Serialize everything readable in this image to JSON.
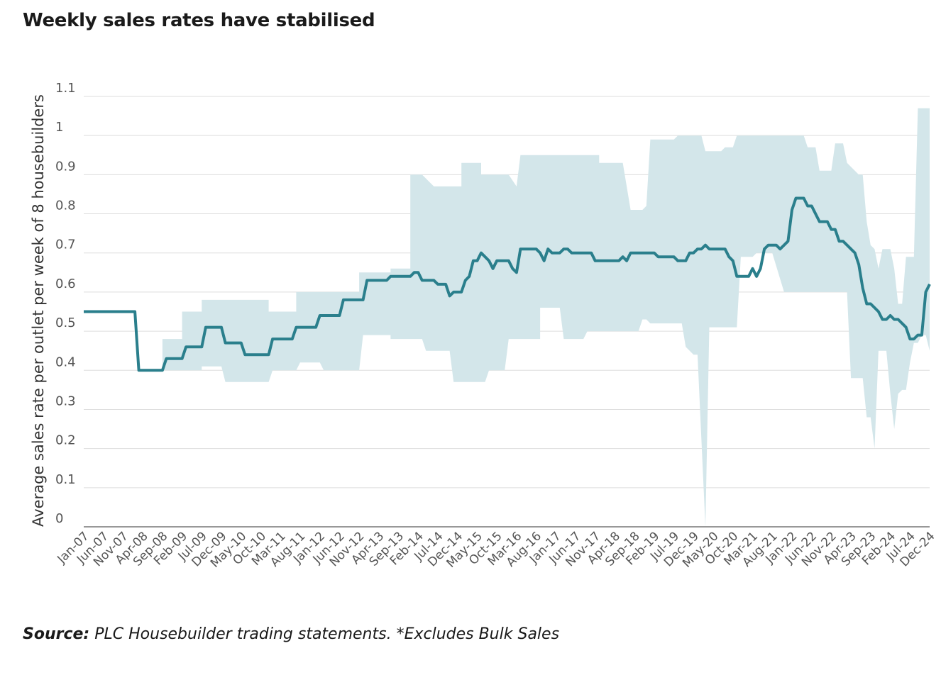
{
  "title": "Weekly sales rates have stabilised",
  "source_label": "Source:",
  "source_text": " PLC Housebuilder trading statements. *Excludes Bulk Sales",
  "colors": {
    "line": "#2a7f8c",
    "band": "#d3e6ea",
    "grid": "#dddddd",
    "axis": "#777777"
  },
  "chart_data": {
    "type": "line",
    "title": "Weekly sales rates have stabilised",
    "ylabel": "Average sales rate per outlet per week of 8 housebuilders",
    "xlabel": "",
    "ylim": [
      0,
      1.1
    ],
    "yticks": [
      0,
      0.1,
      0.2,
      0.3,
      0.4,
      0.5,
      0.6,
      0.7,
      0.8,
      0.9,
      1,
      1.1
    ],
    "xlim": [
      "Jan-07",
      "Dec-24"
    ],
    "x_ticks": [
      "Jan-07",
      "Jun-07",
      "Nov-07",
      "Apr-08",
      "Sep-08",
      "Feb-09",
      "Jul-09",
      "Dec-09",
      "May-10",
      "Oct-10",
      "Mar-11",
      "Aug-11",
      "Jan-12",
      "Jun-12",
      "Nov-12",
      "Apr-13",
      "Sep-13",
      "Feb-14",
      "Jul-14",
      "Dec-14",
      "May-15",
      "Oct-15",
      "Mar-16",
      "Aug-16",
      "Jan-17",
      "Jun-17",
      "Nov-17",
      "Apr-18",
      "Sep-18",
      "Feb-19",
      "Jul-19",
      "Dec-19",
      "May-20",
      "Oct-20",
      "Mar-21",
      "Aug-21",
      "Jan-22",
      "Jun-22",
      "Nov-22",
      "Apr-23",
      "Sep-23",
      "Feb-24",
      "Jul-24",
      "Dec-24"
    ],
    "grid": true,
    "series": [
      {
        "type": "line",
        "points": [
          [
            "Jan-07",
            0.55
          ],
          [
            "Jun-07",
            0.55
          ],
          [
            "Nov-07",
            0.55
          ],
          [
            "Feb-08",
            0.55
          ],
          [
            "Mar-08",
            0.4
          ],
          [
            "Apr-08",
            0.4
          ],
          [
            "Sep-08",
            0.4
          ],
          [
            "Oct-08",
            0.43
          ],
          [
            "Feb-09",
            0.43
          ],
          [
            "Mar-09",
            0.46
          ],
          [
            "Jul-09",
            0.46
          ],
          [
            "Aug-09",
            0.51
          ],
          [
            "Dec-09",
            0.51
          ],
          [
            "Jan-10",
            0.47
          ],
          [
            "May-10",
            0.47
          ],
          [
            "Jun-10",
            0.44
          ],
          [
            "Oct-10",
            0.44
          ],
          [
            "Dec-10",
            0.44
          ],
          [
            "Jan-11",
            0.48
          ],
          [
            "Jun-11",
            0.48
          ],
          [
            "Jul-11",
            0.51
          ],
          [
            "Dec-11",
            0.51
          ],
          [
            "Jan-12",
            0.54
          ],
          [
            "Jun-12",
            0.54
          ],
          [
            "Jul-12",
            0.58
          ],
          [
            "Dec-12",
            0.58
          ],
          [
            "Jan-13",
            0.63
          ],
          [
            "Jun-13",
            0.63
          ],
          [
            "Jul-13",
            0.64
          ],
          [
            "Dec-13",
            0.64
          ],
          [
            "Jan-14",
            0.65
          ],
          [
            "Feb-14",
            0.65
          ],
          [
            "Mar-14",
            0.63
          ],
          [
            "Jun-14",
            0.63
          ],
          [
            "Jul-14",
            0.62
          ],
          [
            "Sep-14",
            0.62
          ],
          [
            "Oct-14",
            0.59
          ],
          [
            "Nov-14",
            0.6
          ],
          [
            "Jan-15",
            0.6
          ],
          [
            "Feb-15",
            0.63
          ],
          [
            "Mar-15",
            0.64
          ],
          [
            "Apr-15",
            0.68
          ],
          [
            "May-15",
            0.68
          ],
          [
            "Jun-15",
            0.7
          ],
          [
            "Jul-15",
            0.69
          ],
          [
            "Aug-15",
            0.68
          ],
          [
            "Sep-15",
            0.66
          ],
          [
            "Oct-15",
            0.68
          ],
          [
            "Jan-16",
            0.68
          ],
          [
            "Feb-16",
            0.66
          ],
          [
            "Mar-16",
            0.65
          ],
          [
            "Apr-16",
            0.71
          ],
          [
            "Aug-16",
            0.71
          ],
          [
            "Sep-16",
            0.7
          ],
          [
            "Oct-16",
            0.68
          ],
          [
            "Nov-16",
            0.71
          ],
          [
            "Dec-16",
            0.7
          ],
          [
            "Feb-17",
            0.7
          ],
          [
            "Mar-17",
            0.71
          ],
          [
            "Apr-17",
            0.71
          ],
          [
            "May-17",
            0.7
          ],
          [
            "Oct-17",
            0.7
          ],
          [
            "Nov-17",
            0.68
          ],
          [
            "May-18",
            0.68
          ],
          [
            "Jun-18",
            0.69
          ],
          [
            "Jul-18",
            0.68
          ],
          [
            "Aug-18",
            0.7
          ],
          [
            "Feb-19",
            0.7
          ],
          [
            "Mar-19",
            0.69
          ],
          [
            "Jul-19",
            0.69
          ],
          [
            "Aug-19",
            0.68
          ],
          [
            "Oct-19",
            0.68
          ],
          [
            "Nov-19",
            0.7
          ],
          [
            "Dec-19",
            0.7
          ],
          [
            "Jan-20",
            0.71
          ],
          [
            "Feb-20",
            0.71
          ],
          [
            "Mar-20",
            0.72
          ],
          [
            "Apr-20",
            0.71
          ],
          [
            "Aug-20",
            0.71
          ],
          [
            "Sep-20",
            0.69
          ],
          [
            "Oct-20",
            0.68
          ],
          [
            "Nov-20",
            0.64
          ],
          [
            "Feb-21",
            0.64
          ],
          [
            "Mar-21",
            0.66
          ],
          [
            "Apr-21",
            0.64
          ],
          [
            "May-21",
            0.66
          ],
          [
            "Jun-21",
            0.71
          ],
          [
            "Jul-21",
            0.72
          ],
          [
            "Sep-21",
            0.72
          ],
          [
            "Oct-21",
            0.71
          ],
          [
            "Nov-21",
            0.72
          ],
          [
            "Dec-21",
            0.73
          ],
          [
            "Jan-22",
            0.81
          ],
          [
            "Feb-22",
            0.84
          ],
          [
            "Apr-22",
            0.84
          ],
          [
            "May-22",
            0.82
          ],
          [
            "Jun-22",
            0.82
          ],
          [
            "Jul-22",
            0.8
          ],
          [
            "Aug-22",
            0.78
          ],
          [
            "Oct-22",
            0.78
          ],
          [
            "Nov-22",
            0.76
          ],
          [
            "Dec-22",
            0.76
          ],
          [
            "Jan-23",
            0.73
          ],
          [
            "Feb-23",
            0.73
          ],
          [
            "Mar-23",
            0.72
          ],
          [
            "Apr-23",
            0.71
          ],
          [
            "May-23",
            0.7
          ],
          [
            "Jun-23",
            0.67
          ],
          [
            "Jul-23",
            0.61
          ],
          [
            "Aug-23",
            0.57
          ],
          [
            "Sep-23",
            0.57
          ],
          [
            "Oct-23",
            0.56
          ],
          [
            "Nov-23",
            0.55
          ],
          [
            "Dec-23",
            0.53
          ],
          [
            "Jan-24",
            0.53
          ],
          [
            "Feb-24",
            0.54
          ],
          [
            "Mar-24",
            0.53
          ],
          [
            "Apr-24",
            0.53
          ],
          [
            "May-24",
            0.52
          ],
          [
            "Jun-24",
            0.51
          ],
          [
            "Jul-24",
            0.48
          ],
          [
            "Aug-24",
            0.48
          ],
          [
            "Sep-24",
            0.49
          ],
          [
            "Oct-24",
            0.49
          ],
          [
            "Nov-24",
            0.6
          ],
          [
            "Dec-24",
            0.62
          ]
        ]
      }
    ],
    "band": {
      "upper": [
        [
          "Sep-08",
          0.48
        ],
        [
          "Feb-09",
          0.48
        ],
        [
          "Feb-09",
          0.55
        ],
        [
          "Jul-09",
          0.55
        ],
        [
          "Jul-09",
          0.58
        ],
        [
          "Dec-10",
          0.58
        ],
        [
          "Dec-10",
          0.55
        ],
        [
          "Jul-11",
          0.55
        ],
        [
          "Jul-11",
          0.6
        ],
        [
          "Jan-12",
          0.6
        ],
        [
          "Jan-12",
          0.6
        ],
        [
          "Nov-12",
          0.6
        ],
        [
          "Nov-12",
          0.65
        ],
        [
          "Jul-13",
          0.65
        ],
        [
          "Jul-13",
          0.66
        ],
        [
          "Dec-13",
          0.66
        ],
        [
          "Dec-13",
          0.9
        ],
        [
          "Mar-14",
          0.9
        ],
        [
          "Jun-14",
          0.87
        ],
        [
          "Jan-15",
          0.87
        ],
        [
          "Jan-15",
          0.93
        ],
        [
          "Jun-15",
          0.93
        ],
        [
          "Jun-15",
          0.9
        ],
        [
          "Jan-16",
          0.9
        ],
        [
          "Mar-16",
          0.87
        ],
        [
          "Apr-16",
          0.95
        ],
        [
          "Dec-17",
          0.95
        ],
        [
          "Dec-17",
          0.93
        ],
        [
          "Jun-18",
          0.93
        ],
        [
          "Jul-18",
          0.87
        ],
        [
          "Aug-18",
          0.81
        ],
        [
          "Nov-18",
          0.81
        ],
        [
          "Dec-18",
          0.82
        ],
        [
          "Jan-19",
          0.99
        ],
        [
          "Jul-19",
          0.99
        ],
        [
          "Aug-19",
          1.0
        ],
        [
          "Feb-20",
          1.0
        ],
        [
          "Mar-20",
          0.96
        ],
        [
          "Jul-20",
          0.96
        ],
        [
          "Aug-20",
          0.97
        ],
        [
          "Oct-20",
          0.97
        ],
        [
          "Nov-20",
          1.0
        ],
        [
          "Apr-22",
          1.0
        ],
        [
          "May-22",
          0.97
        ],
        [
          "Jul-22",
          0.97
        ],
        [
          "Aug-22",
          0.91
        ],
        [
          "Nov-22",
          0.91
        ],
        [
          "Dec-22",
          0.98
        ],
        [
          "Feb-23",
          0.98
        ],
        [
          "Mar-23",
          0.93
        ],
        [
          "Jun-23",
          0.9
        ],
        [
          "Jul-23",
          0.9
        ],
        [
          "Aug-23",
          0.78
        ],
        [
          "Sep-23",
          0.72
        ],
        [
          "Oct-23",
          0.71
        ],
        [
          "Nov-23",
          0.66
        ],
        [
          "Dec-23",
          0.71
        ],
        [
          "Feb-24",
          0.71
        ],
        [
          "Mar-24",
          0.66
        ],
        [
          "Apr-24",
          0.57
        ],
        [
          "May-24",
          0.57
        ],
        [
          "Jun-24",
          0.69
        ],
        [
          "Aug-24",
          0.69
        ],
        [
          "Sep-24",
          1.07
        ],
        [
          "Dec-24",
          1.07
        ]
      ],
      "lower": [
        [
          "Sep-08",
          0.4
        ],
        [
          "Jul-09",
          0.4
        ],
        [
          "Jul-09",
          0.41
        ],
        [
          "Dec-09",
          0.41
        ],
        [
          "Jan-10",
          0.37
        ],
        [
          "Dec-10",
          0.37
        ],
        [
          "Jan-11",
          0.4
        ],
        [
          "Jul-11",
          0.4
        ],
        [
          "Aug-11",
          0.42
        ],
        [
          "Jan-12",
          0.42
        ],
        [
          "Feb-12",
          0.4
        ],
        [
          "Nov-12",
          0.4
        ],
        [
          "Dec-12",
          0.49
        ],
        [
          "Jul-13",
          0.49
        ],
        [
          "Jul-13",
          0.48
        ],
        [
          "Mar-14",
          0.48
        ],
        [
          "Apr-14",
          0.45
        ],
        [
          "Oct-14",
          0.45
        ],
        [
          "Nov-14",
          0.37
        ],
        [
          "Jul-15",
          0.37
        ],
        [
          "Aug-15",
          0.4
        ],
        [
          "Dec-15",
          0.4
        ],
        [
          "Jan-16",
          0.48
        ],
        [
          "Sep-16",
          0.48
        ],
        [
          "Sep-16",
          0.56
        ],
        [
          "Feb-17",
          0.56
        ],
        [
          "Mar-17",
          0.48
        ],
        [
          "Aug-17",
          0.48
        ],
        [
          "Sep-17",
          0.5
        ],
        [
          "Oct-18",
          0.5
        ],
        [
          "Nov-18",
          0.53
        ],
        [
          "Dec-18",
          0.53
        ],
        [
          "Jan-19",
          0.52
        ],
        [
          "Sep-19",
          0.52
        ],
        [
          "Oct-19",
          0.46
        ],
        [
          "Nov-19",
          0.45
        ],
        [
          "Dec-19",
          0.44
        ],
        [
          "Jan-20",
          0.44
        ],
        [
          "Mar-20",
          0.0
        ],
        [
          "Apr-20",
          0.51
        ],
        [
          "Nov-20",
          0.51
        ],
        [
          "Dec-20",
          0.69
        ],
        [
          "Mar-21",
          0.69
        ],
        [
          "Apr-21",
          0.7
        ],
        [
          "Aug-21",
          0.7
        ],
        [
          "Nov-21",
          0.6
        ],
        [
          "Mar-23",
          0.6
        ],
        [
          "Apr-23",
          0.38
        ],
        [
          "Jul-23",
          0.38
        ],
        [
          "Aug-23",
          0.28
        ],
        [
          "Sep-23",
          0.28
        ],
        [
          "Oct-23",
          0.2
        ],
        [
          "Nov-23",
          0.45
        ],
        [
          "Jan-24",
          0.45
        ],
        [
          "Feb-24",
          0.34
        ],
        [
          "Mar-24",
          0.25
        ],
        [
          "Apr-24",
          0.34
        ],
        [
          "May-24",
          0.35
        ],
        [
          "Jun-24",
          0.35
        ],
        [
          "Jul-24",
          0.42
        ],
        [
          "Aug-24",
          0.47
        ],
        [
          "Sep-24",
          0.47
        ],
        [
          "Oct-24",
          0.49
        ],
        [
          "Nov-24",
          0.49
        ],
        [
          "Dec-24",
          0.45
        ]
      ]
    }
  }
}
